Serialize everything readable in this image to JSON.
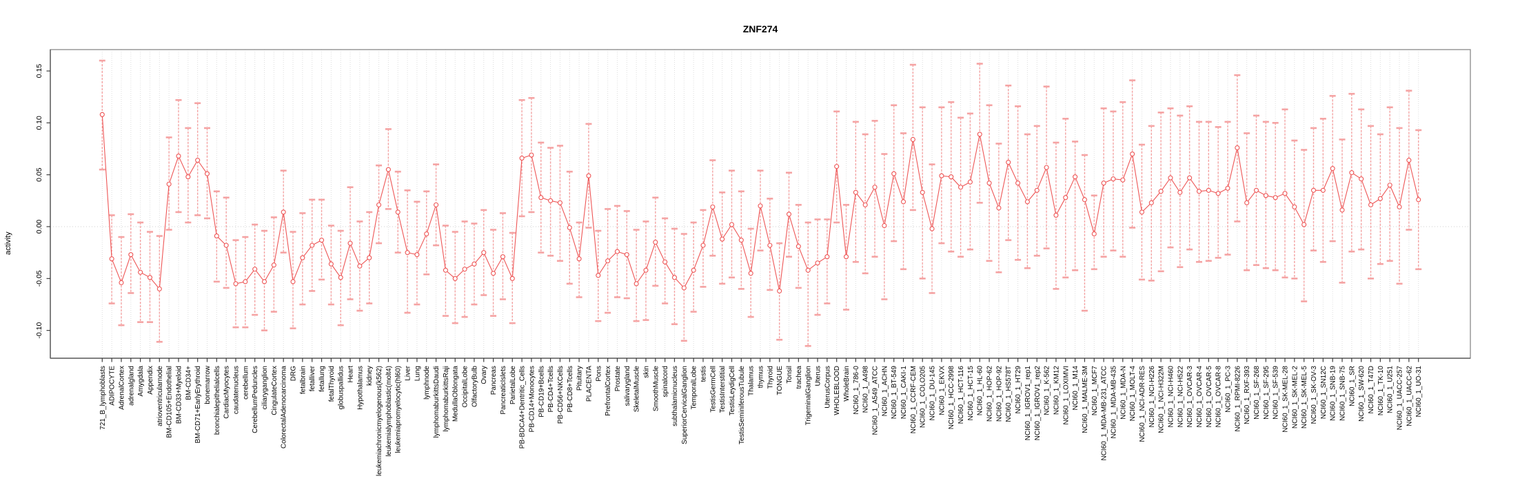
{
  "title": "ZNF274",
  "chart_data": {
    "type": "line",
    "title": "ZNF274",
    "xlabel": "",
    "ylabel": "activity",
    "legend": "none",
    "grid": "vertical dotted gridline per category; dotted horizontal line at 0",
    "error_bars": true,
    "point_style": "open-circle",
    "line_color": "#ee5555",
    "errorbar_color": "#f5a3a3",
    "grid_color": "#dcdcdc",
    "box_color": "#999999",
    "axis_color": "#666666",
    "tick_color": "#3c3c3c",
    "ylim": [
      -0.127,
      0.171
    ],
    "yticks": [
      0.15,
      0.1,
      0.05,
      0.0,
      -0.05,
      -0.1
    ],
    "ytick_labels": [
      "0.15",
      "0.10",
      "0.05",
      "0.00",
      "-0.05",
      "-0.10"
    ],
    "categories": [
      "721_B_lymphoblasts",
      "ADIPOCYTE",
      "AdrenalCortex",
      "adrenalgland",
      "Amygdala",
      "Appendix",
      "atrioventricularnode",
      "BM-CD105+Endothelial",
      "BM-CD33+Myeloid",
      "BM-CD34+",
      "BM-CD71+EarlyErythroid",
      "bonemarrow",
      "bronchialepithelialcells",
      "CardiacMyocytes",
      "caudatenucleus",
      "cerebellum",
      "CerebellumPeduncles",
      "ciliaryganglion",
      "CingulateCortex",
      "ColorectalAdenocarcinoma",
      "DRG",
      "fetalbrain",
      "fetalliver",
      "fetallung",
      "fetalThyroid",
      "globuspallidus",
      "Heart",
      "Hypothalamus",
      "kidney",
      "leukemiachronicmyelogenous(k562)",
      "leukemialymphoblastic(molt4)",
      "leukemiapromyelocytic(hl60)",
      "Liver",
      "Lung",
      "lymphnode",
      "lymphomaburkittsDaudi",
      "lymphomaburkittsRaji",
      "MedullaOblongata",
      "OccipitalLobe",
      "OlfactoryBulb",
      "Ovary",
      "Pancreas",
      "PancreaticIslets",
      "ParietalLobe",
      "PB-BDCA4+Dentritic_Cells",
      "PB-CD14+Monocytes",
      "PB-CD19+Bcells",
      "PB-CD4+Tcells",
      "PB-CD56+NKCells",
      "PB-CD8+Tcells",
      "Pituitary",
      "PLACENTA",
      "Pons",
      "PrefrontalCortex",
      "Prostate",
      "salivarygland",
      "SkeletalMuscle",
      "skin",
      "SmoothMuscle",
      "spinalcord",
      "subthalamicnucleus",
      "SuperiorCervicalGanglion",
      "TemporalLobe",
      "testis",
      "TestisGermCell",
      "TestisInterstitial",
      "TestisLeydigCell",
      "TestisSeminiferousTubule",
      "Thalamus",
      "thymus",
      "Thyroid",
      "TONGUE",
      "Tonsil",
      "trachea",
      "TrigeminalGanglion",
      "Uterus",
      "UterusCorpus",
      "WHOLEBLOOD",
      "WholeBrain",
      "NCI60_1_786-0",
      "NCI60_1_A498",
      "NCI60_1_A549_ATCC",
      "NCI60_1_ACHN",
      "NCI60_1_BT-549",
      "NCI60_1_CAKI-1",
      "NCI60_1_CCRF-CEM",
      "NCI60_1_COLO205",
      "NCI60_1_DU-145",
      "NCI60_1_EKVX",
      "NCI60_1_HCC-2998",
      "NCI60_1_HCT-116",
      "NCI60_1_HCT-15",
      "NCI60_1_HL-60",
      "NCI60_1_HOP-62",
      "NCI60_1_HOP-92",
      "NCI60_1_HS578T",
      "NCI60_1_HT29",
      "NCI60_1_IGROV1_rep1",
      "NCI60_1_IGROV1_rep2",
      "NCI60_1_K-562",
      "NCI60_1_KM12",
      "NCI60_1_LOXIMVI",
      "NCI60_1_M14",
      "NCI60_1_MALME-3M",
      "NCI60_1_MCF7",
      "NCI60_1_MDA-MB-231_ATCC",
      "NCI60_1_MDA-MB-435",
      "NCI60_1_MDA-N",
      "NCI60_1_MOLT-4",
      "NCI60_1_NCI-ADR-RES",
      "NCI60_1_NCI-H226",
      "NCI60_1_NCI-H322M",
      "NCI60_1_NCI-H460",
      "NCI60_1_NCI-H522",
      "NCI60_1_OVCAR-3",
      "NCI60_1_OVCAR-4",
      "NCI60_1_OVCAR-5",
      "NCI60_1_OVCAR-8",
      "NCI60_1_PC-3",
      "NCI60_1_RPMI-8226",
      "NCI60_1_RXF-393",
      "NCI60_1_SF-268",
      "NCI60_1_SF-295",
      "NCI60_1_SF-539",
      "NCI60_1_SK-MEL-28",
      "NCI60_1_SK-MEL-2",
      "NCI60_1_SK-MEL-5",
      "NCI60_1_SK-OV-3",
      "NCI60_1_SN12C",
      "NCI60_1_SNB-19",
      "NCI60_1_SNB-75",
      "NCI60_1_SR",
      "NCI60_1_SW-620",
      "NCI60_1_T47D",
      "NCI60_1_TK-10",
      "NCI60_1_U251",
      "NCI60_1_UACC-257",
      "NCI60_1_UACC-62",
      "NCI60_1_UO-31"
    ],
    "series": [
      {
        "name": "activity",
        "values": [
          0.108,
          -0.031,
          -0.054,
          -0.027,
          -0.044,
          -0.049,
          -0.06,
          0.041,
          0.068,
          0.048,
          0.064,
          0.051,
          -0.009,
          -0.018,
          -0.055,
          -0.053,
          -0.041,
          -0.053,
          -0.037,
          0.014,
          -0.053,
          -0.03,
          -0.018,
          -0.013,
          -0.036,
          -0.049,
          -0.016,
          -0.038,
          -0.03,
          0.021,
          0.055,
          0.014,
          -0.025,
          -0.027,
          -0.007,
          0.021,
          -0.042,
          -0.05,
          -0.041,
          -0.036,
          -0.025,
          -0.045,
          -0.029,
          -0.05,
          0.066,
          0.069,
          0.028,
          0.025,
          0.023,
          -0.001,
          -0.031,
          0.049,
          -0.047,
          -0.033,
          -0.024,
          -0.027,
          -0.055,
          -0.042,
          -0.015,
          -0.034,
          -0.049,
          -0.059,
          -0.042,
          -0.018,
          0.019,
          -0.012,
          0.002,
          -0.013,
          -0.045,
          0.02,
          -0.018,
          -0.062,
          0.012,
          -0.019,
          -0.042,
          -0.035,
          -0.029,
          0.058,
          -0.029,
          0.033,
          0.021,
          0.038,
          0.001,
          0.051,
          0.024,
          0.084,
          0.033,
          -0.002,
          0.049,
          0.048,
          0.038,
          0.043,
          0.089,
          0.042,
          0.018,
          0.062,
          0.042,
          0.024,
          0.035,
          0.057,
          0.011,
          0.028,
          0.048,
          0.026,
          -0.007,
          0.042,
          0.046,
          0.045,
          0.07,
          0.014,
          0.023,
          0.034,
          0.047,
          0.033,
          0.047,
          0.034,
          0.035,
          0.032,
          0.037,
          0.076,
          0.023,
          0.035,
          0.03,
          0.028,
          0.032,
          0.019,
          0.002,
          0.035,
          0.035,
          0.056,
          0.016,
          0.052,
          0.046,
          0.021,
          0.027,
          0.04,
          0.019,
          0.064,
          0.026
        ],
        "err_lo": [
          0.055,
          -0.074,
          -0.095,
          -0.064,
          -0.092,
          -0.092,
          -0.111,
          -0.003,
          0.014,
          0.004,
          0.011,
          0.008,
          -0.053,
          -0.059,
          -0.097,
          -0.097,
          -0.085,
          -0.1,
          -0.082,
          -0.025,
          -0.098,
          -0.075,
          -0.062,
          -0.051,
          -0.075,
          -0.095,
          -0.07,
          -0.081,
          -0.074,
          -0.016,
          0.017,
          -0.025,
          -0.083,
          -0.075,
          -0.046,
          -0.018,
          -0.086,
          -0.093,
          -0.087,
          -0.075,
          -0.066,
          -0.086,
          -0.07,
          -0.093,
          0.01,
          0.014,
          -0.025,
          -0.028,
          -0.033,
          -0.055,
          -0.068,
          -0.001,
          -0.091,
          -0.083,
          -0.068,
          -0.069,
          -0.091,
          -0.09,
          -0.057,
          -0.074,
          -0.094,
          -0.11,
          -0.082,
          -0.058,
          -0.028,
          -0.055,
          -0.049,
          -0.06,
          -0.087,
          -0.023,
          -0.061,
          -0.109,
          -0.029,
          -0.059,
          -0.115,
          -0.085,
          -0.074,
          0.004,
          -0.08,
          -0.034,
          -0.045,
          -0.029,
          -0.07,
          -0.014,
          -0.041,
          0.016,
          -0.05,
          -0.064,
          -0.016,
          -0.024,
          -0.029,
          -0.022,
          0.023,
          -0.033,
          -0.044,
          -0.013,
          -0.032,
          -0.04,
          -0.028,
          -0.021,
          -0.06,
          -0.049,
          -0.042,
          -0.081,
          -0.041,
          -0.029,
          -0.023,
          -0.029,
          -0.001,
          -0.051,
          -0.052,
          -0.043,
          -0.02,
          -0.039,
          -0.022,
          -0.034,
          -0.033,
          -0.03,
          -0.027,
          0.005,
          -0.042,
          -0.037,
          -0.04,
          -0.042,
          -0.049,
          -0.05,
          -0.072,
          -0.023,
          -0.034,
          -0.014,
          -0.054,
          -0.024,
          -0.022,
          -0.05,
          -0.036,
          -0.033,
          -0.055,
          -0.003,
          -0.041
        ],
        "err_hi": [
          0.16,
          0.011,
          -0.01,
          0.012,
          0.004,
          -0.005,
          -0.009,
          0.086,
          0.122,
          0.095,
          0.119,
          0.095,
          0.034,
          0.028,
          -0.013,
          -0.01,
          0.002,
          -0.004,
          0.009,
          0.054,
          -0.005,
          0.013,
          0.026,
          0.026,
          0.001,
          -0.004,
          0.038,
          0.005,
          0.014,
          0.059,
          0.094,
          0.053,
          0.035,
          0.024,
          0.034,
          0.06,
          0.001,
          -0.005,
          0.005,
          0.003,
          0.016,
          -0.003,
          0.013,
          -0.006,
          0.122,
          0.124,
          0.081,
          0.076,
          0.078,
          0.053,
          0.004,
          0.099,
          -0.004,
          0.017,
          0.02,
          0.015,
          -0.003,
          0.005,
          0.028,
          0.008,
          -0.002,
          -0.007,
          0.004,
          0.016,
          0.064,
          0.033,
          0.054,
          0.034,
          -0.002,
          0.054,
          0.027,
          -0.016,
          0.052,
          0.021,
          0.004,
          0.007,
          0.007,
          0.111,
          0.021,
          0.101,
          0.089,
          0.102,
          0.07,
          0.117,
          0.09,
          0.156,
          0.115,
          0.06,
          0.115,
          0.12,
          0.105,
          0.109,
          0.157,
          0.117,
          0.08,
          0.136,
          0.116,
          0.089,
          0.097,
          0.135,
          0.081,
          0.104,
          0.082,
          0.069,
          0.03,
          0.114,
          0.111,
          0.12,
          0.141,
          0.079,
          0.097,
          0.11,
          0.114,
          0.107,
          0.116,
          0.101,
          0.101,
          0.096,
          0.101,
          0.146,
          0.09,
          0.107,
          0.101,
          0.1,
          0.113,
          0.083,
          0.074,
          0.095,
          0.104,
          0.126,
          0.084,
          0.128,
          0.113,
          0.097,
          0.089,
          0.115,
          0.095,
          0.131,
          0.093
        ]
      }
    ]
  }
}
